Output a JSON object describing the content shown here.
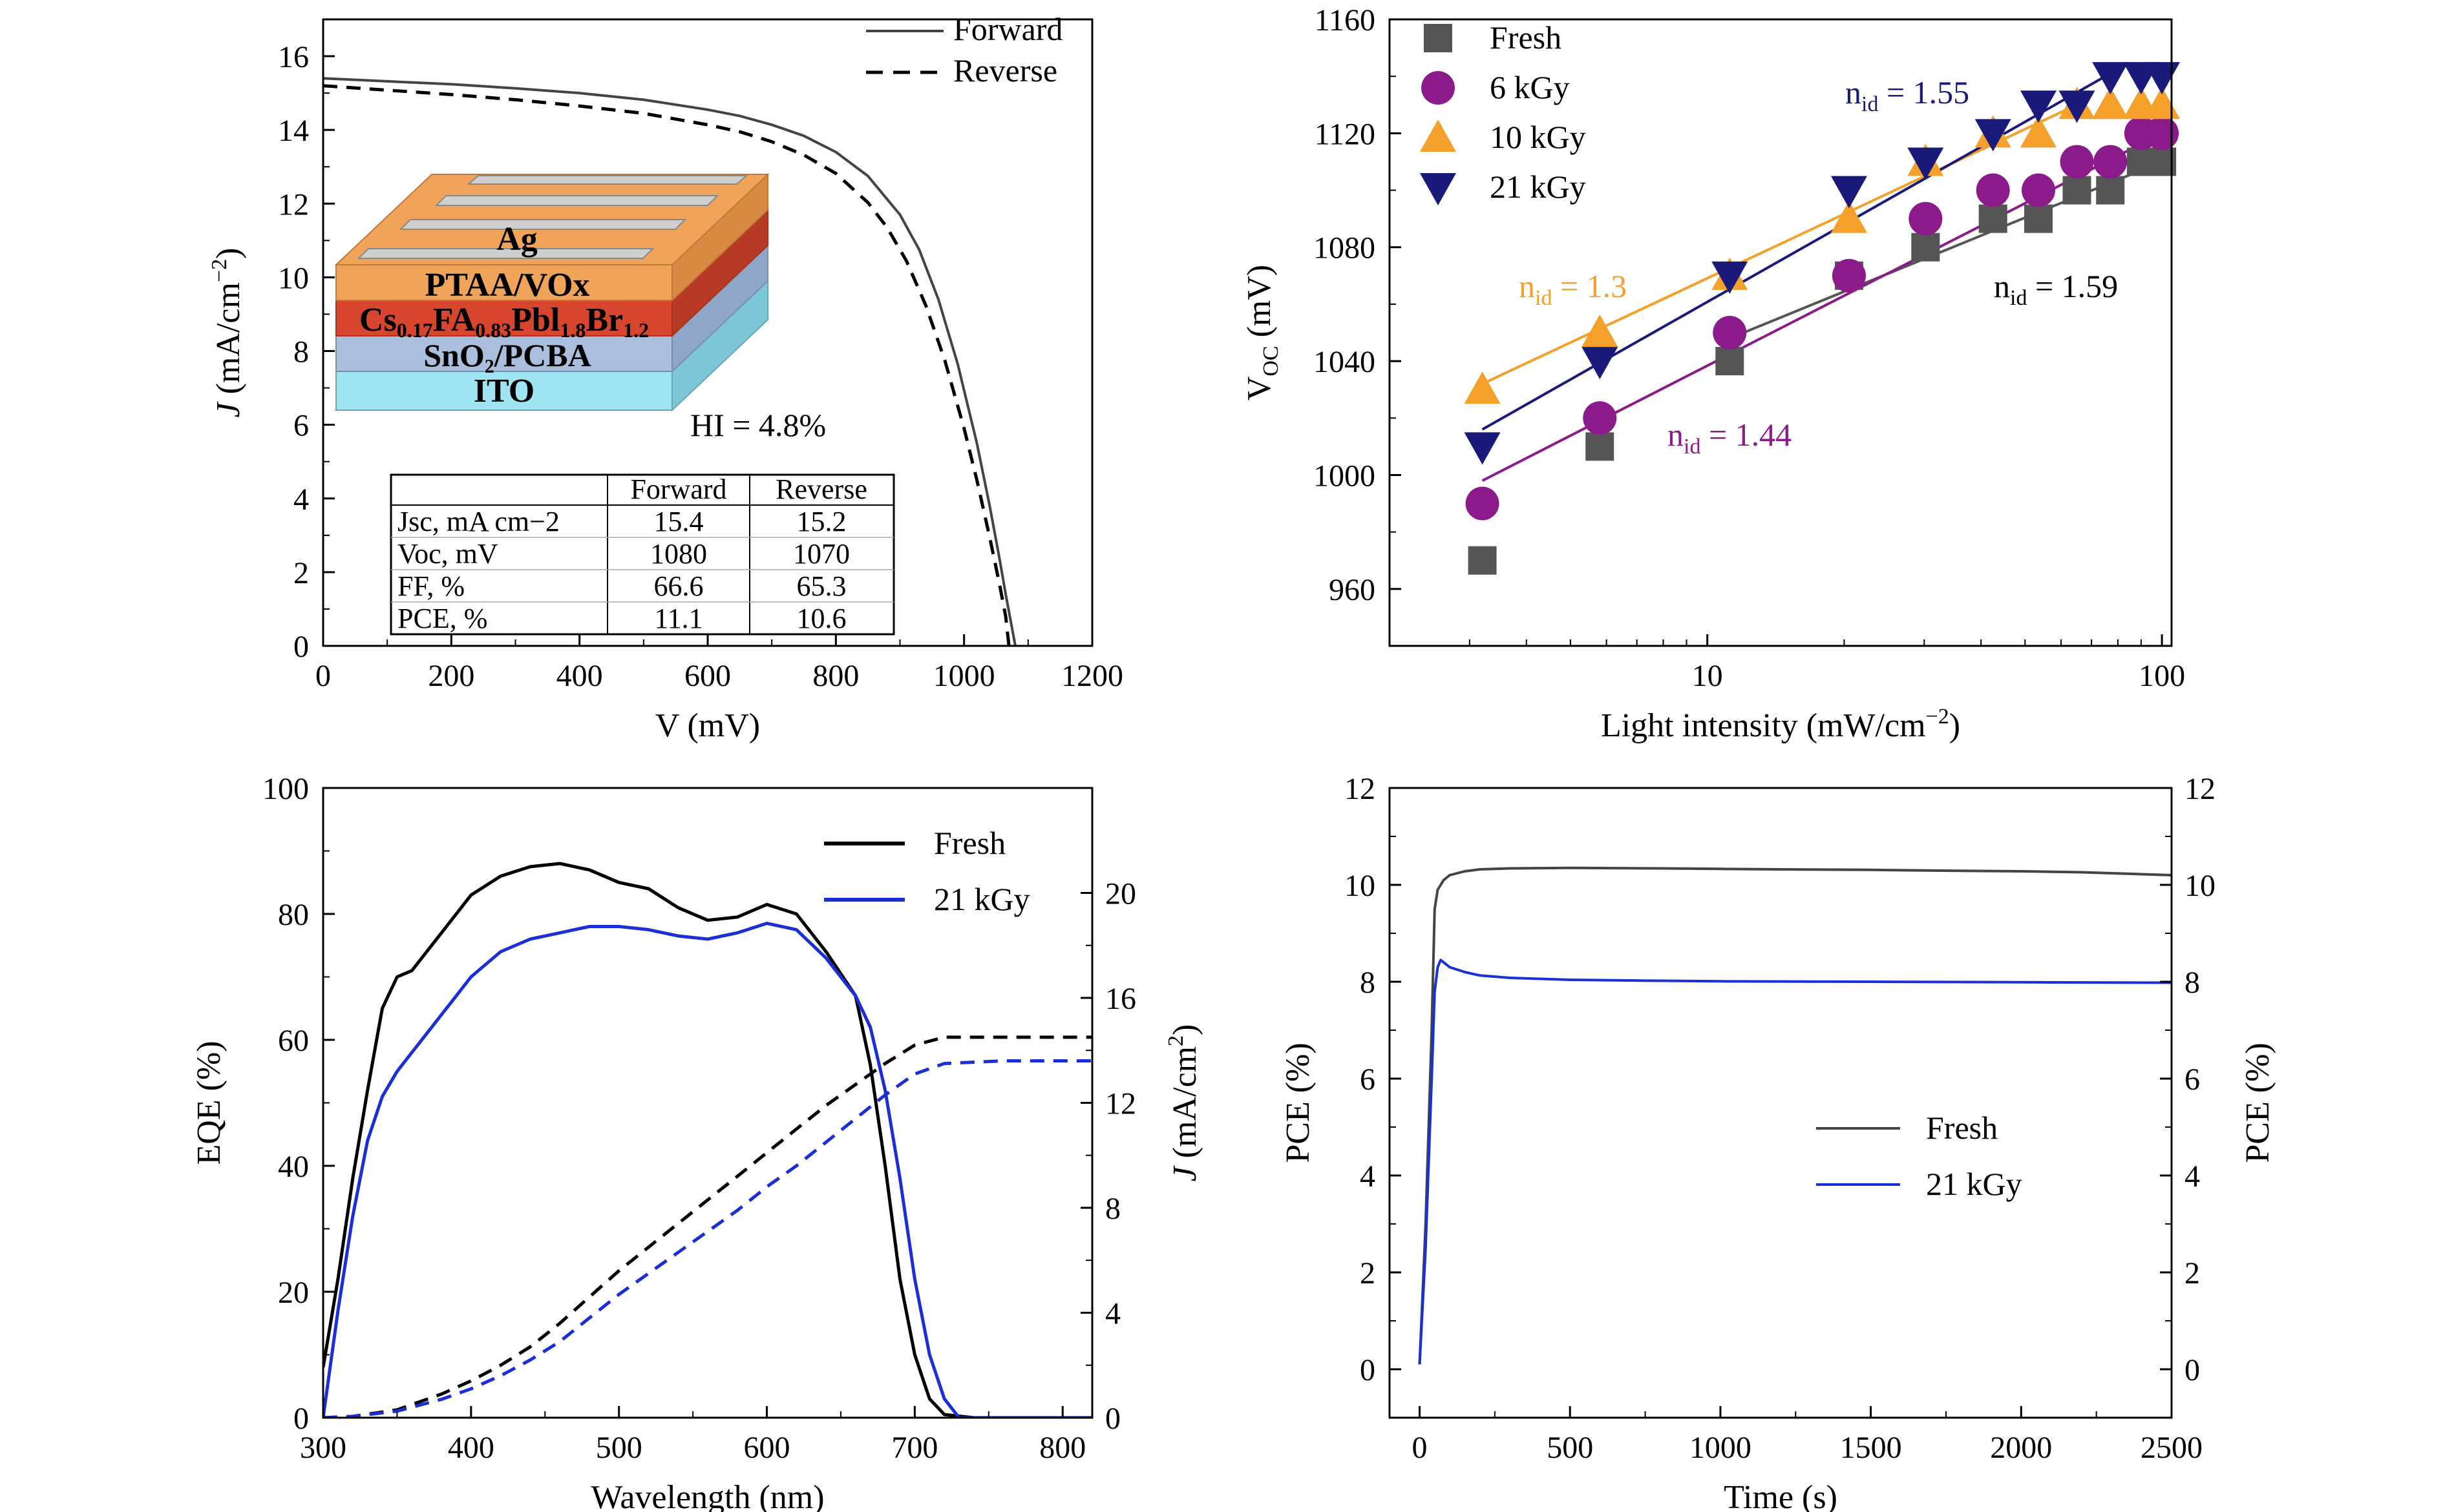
{
  "chart_data": [
    {
      "id": "jv",
      "type": "line",
      "xlabel": "V (mV)",
      "ylabel": {
        "main": "J",
        "rest": " (mA/cm",
        "sup": "−2",
        "close": ")"
      },
      "xlim": [
        0,
        1200
      ],
      "ylim": [
        0,
        17
      ],
      "xticks": [
        0,
        200,
        400,
        600,
        800,
        1000,
        1200
      ],
      "yticks": [
        0,
        2,
        4,
        6,
        8,
        10,
        12,
        14,
        16
      ],
      "legend": "top-right",
      "series": [
        {
          "name": "Forward",
          "color": "#444444",
          "dash": "solid",
          "x": [
            0,
            100,
            200,
            300,
            400,
            500,
            600,
            650,
            700,
            750,
            800,
            850,
            900,
            930,
            960,
            990,
            1020,
            1040,
            1055,
            1065,
            1073,
            1080
          ],
          "y": [
            15.4,
            15.32,
            15.24,
            15.13,
            15.0,
            14.82,
            14.55,
            14.38,
            14.14,
            13.84,
            13.4,
            12.75,
            11.7,
            10.75,
            9.4,
            7.65,
            5.5,
            3.8,
            2.4,
            1.4,
            0.65,
            0
          ]
        },
        {
          "name": "Reverse",
          "color": "#000000",
          "dash": "dashed",
          "x": [
            0,
            100,
            200,
            300,
            400,
            500,
            600,
            650,
            700,
            750,
            800,
            850,
            880,
            910,
            940,
            970,
            1000,
            1020,
            1040,
            1055,
            1065,
            1070
          ],
          "y": [
            15.2,
            15.08,
            14.96,
            14.82,
            14.65,
            14.45,
            14.14,
            13.95,
            13.68,
            13.32,
            12.82,
            12.03,
            11.35,
            10.45,
            9.25,
            7.75,
            5.9,
            4.5,
            2.95,
            1.7,
            0.8,
            0
          ]
        }
      ],
      "annotation": "HI = 4.8%",
      "annotation_color": "#cc2222",
      "inset_layers": [
        {
          "label": "Ag",
          "color": "#f0a45a"
        },
        {
          "label": "PTAA/VOx",
          "color": "#f0a45a"
        },
        {
          "label_html": [
            "Cs",
            "0.17",
            "FA",
            "0.83",
            "Pbl",
            "1.8",
            "Br",
            "1.2"
          ],
          "color": "#d8452e"
        },
        {
          "label": "SnO₂/PCBA",
          "color": "#9ab2d4"
        },
        {
          "label": "ITO",
          "color": "#7fd4e6"
        }
      ],
      "table": {
        "headers": [
          "",
          "Forward",
          "Reverse"
        ],
        "rows": [
          [
            "Jsc, mA cm−2",
            "15.4",
            "15.2"
          ],
          [
            "Voc, mV",
            "1080",
            "1070"
          ],
          [
            "FF, %",
            "66.6",
            "65.3"
          ],
          [
            "PCE, %",
            "11.1",
            "10.6"
          ]
        ]
      }
    },
    {
      "id": "voc",
      "type": "scatter",
      "xscale": "log",
      "xlabel": {
        "main": "Light intensity (mW/cm",
        "sup": "−2",
        "close": ")"
      },
      "ylabel": {
        "main": "V",
        "sub": "OC",
        "rest": " (mV)"
      },
      "xlim": [
        2,
        105
      ],
      "ylim": [
        940,
        1160
      ],
      "xticks": [
        10,
        100
      ],
      "yticks": [
        960,
        1000,
        1040,
        1080,
        1120,
        1160
      ],
      "legend": "top-left",
      "series": [
        {
          "name": "Fresh",
          "color": "#555555",
          "marker": "square",
          "x": [
            3.2,
            5.8,
            11.2,
            20.5,
            30.2,
            42.5,
            53.5,
            65,
            77,
            90,
            100
          ],
          "y": [
            970,
            1010,
            1040,
            1070,
            1080,
            1090,
            1090,
            1100,
            1100,
            1110,
            1110
          ],
          "fit": {
            "x": [
              11.2,
              100
            ],
            "y": [
              1048,
              1110
            ],
            "label_main": "n",
            "label_sub": "id",
            "label_val": " = 1.59",
            "label_color": "#000000"
          }
        },
        {
          "name": "6 kGy",
          "color": "#8b1a8b",
          "marker": "circle",
          "x": [
            3.2,
            5.8,
            11.2,
            20.5,
            30.2,
            42.5,
            53.5,
            65,
            77,
            90,
            100
          ],
          "y": [
            990,
            1020,
            1050,
            1070,
            1090,
            1100,
            1100,
            1110,
            1110,
            1120,
            1120
          ],
          "fit": {
            "x": [
              3.2,
              100
            ],
            "y": [
              998,
              1120
            ],
            "label_main": "n",
            "label_sub": "id",
            "label_val": " = 1.44",
            "label_color": "#8b1a8b"
          }
        },
        {
          "name": "10 kGy",
          "color": "#f5a02a",
          "marker": "triangle-up",
          "x": [
            3.2,
            5.8,
            11.2,
            20.5,
            30.2,
            42.5,
            53.5,
            65,
            77,
            90,
            100
          ],
          "y": [
            1030,
            1050,
            1070,
            1090,
            1110,
            1120,
            1120,
            1130,
            1130,
            1130,
            1130
          ],
          "fit": {
            "x": [
              3.2,
              65
            ],
            "y": [
              1032,
              1130
            ],
            "label_main": "n",
            "label_sub": "id",
            "label_val": " = 1.3",
            "label_color": "#f5a02a"
          }
        },
        {
          "name": "21 kGy",
          "color": "#1a1a7a",
          "marker": "triangle-down",
          "x": [
            3.2,
            5.8,
            11.2,
            20.5,
            30.2,
            42.5,
            53.5,
            65,
            77,
            90,
            100
          ],
          "y": [
            1010,
            1040,
            1070,
            1100,
            1110,
            1120,
            1130,
            1130,
            1140,
            1140,
            1140
          ],
          "fit": {
            "x": [
              3.2,
              77
            ],
            "y": [
              1016,
              1141
            ],
            "label_main": "n",
            "label_sub": "id",
            "label_val": " = 1.55",
            "label_color": "#1a1a7a"
          }
        }
      ]
    },
    {
      "id": "eqe",
      "type": "line",
      "xlabel": "Wavelength (nm)",
      "ylabel": "EQE (%)",
      "ylabel_right": {
        "main": "J",
        "rest": " (mA/cm",
        "sup": "2",
        "close": ")"
      },
      "xlim": [
        300,
        820
      ],
      "ylim": [
        0,
        100
      ],
      "ylim_right": [
        0,
        24
      ],
      "xticks": [
        300,
        400,
        500,
        600,
        700,
        800
      ],
      "yticks": [
        0,
        20,
        40,
        60,
        80,
        100
      ],
      "yticks_right": [
        0,
        4,
        8,
        12,
        16,
        20
      ],
      "legend": "top-right",
      "series": [
        {
          "name": "Fresh",
          "color": "#000000",
          "dash": "solid",
          "axis": "left",
          "x": [
            300,
            310,
            320,
            330,
            340,
            350,
            360,
            370,
            380,
            390,
            400,
            420,
            440,
            460,
            480,
            500,
            520,
            540,
            560,
            580,
            600,
            620,
            640,
            660,
            670,
            680,
            690,
            700,
            710,
            720,
            740,
            820
          ],
          "y": [
            8,
            22,
            38,
            52,
            65,
            70,
            71,
            74,
            77,
            80,
            83,
            86,
            87.5,
            88,
            87,
            85,
            84,
            81,
            79,
            79.5,
            81.5,
            80,
            74,
            67,
            56,
            40,
            22,
            10,
            3,
            0.5,
            0,
            0
          ]
        },
        {
          "name": "21 kGy",
          "color": "#1a2fd6",
          "dash": "solid",
          "axis": "left",
          "x": [
            300,
            310,
            320,
            330,
            340,
            350,
            360,
            370,
            380,
            390,
            400,
            420,
            440,
            460,
            480,
            500,
            520,
            540,
            560,
            580,
            600,
            620,
            640,
            660,
            670,
            680,
            690,
            700,
            710,
            720,
            730,
            820
          ],
          "y": [
            0,
            17,
            32,
            44,
            51,
            55,
            58,
            61,
            64,
            67,
            70,
            74,
            76,
            77,
            78,
            78,
            77.5,
            76.5,
            76,
            77,
            78.5,
            77.5,
            73,
            67,
            62,
            52,
            38,
            22,
            10,
            3,
            0,
            0
          ]
        },
        {
          "name": "Fresh J",
          "color": "#000000",
          "dash": "dashed",
          "axis": "right",
          "x": [
            300,
            320,
            350,
            380,
            400,
            420,
            440,
            460,
            480,
            500,
            520,
            540,
            560,
            580,
            600,
            620,
            640,
            660,
            680,
            700,
            720,
            760,
            820
          ],
          "y": [
            0,
            0.05,
            0.3,
            0.9,
            1.4,
            2.0,
            2.7,
            3.6,
            4.6,
            5.6,
            6.5,
            7.4,
            8.3,
            9.2,
            10.1,
            11.0,
            11.9,
            12.7,
            13.5,
            14.2,
            14.5,
            14.5,
            14.5
          ]
        },
        {
          "name": "21 kGy J",
          "color": "#1a2fd6",
          "dash": "dashed",
          "axis": "right",
          "x": [
            300,
            320,
            350,
            380,
            400,
            420,
            440,
            460,
            480,
            500,
            520,
            540,
            560,
            580,
            600,
            620,
            640,
            660,
            680,
            700,
            720,
            760,
            820
          ],
          "y": [
            0,
            0.05,
            0.25,
            0.7,
            1.1,
            1.6,
            2.2,
            2.9,
            3.8,
            4.7,
            5.5,
            6.3,
            7.1,
            7.9,
            8.8,
            9.6,
            10.5,
            11.4,
            12.3,
            13.1,
            13.5,
            13.6,
            13.6
          ]
        }
      ]
    },
    {
      "id": "pce",
      "type": "line",
      "xlabel": "Time (s)",
      "ylabel": "PCE (%)",
      "ylabel_right": "PCE (%)",
      "xlim": [
        -100,
        2500
      ],
      "ylim": [
        -1,
        12
      ],
      "xticks": [
        0,
        500,
        1000,
        1500,
        2000,
        2500
      ],
      "yticks": [
        0,
        2,
        4,
        6,
        8,
        10,
        12
      ],
      "legend": "center-right",
      "series": [
        {
          "name": "Fresh",
          "color": "#444444",
          "dash": "solid",
          "x": [
            0,
            20,
            40,
            50,
            60,
            80,
            100,
            150,
            200,
            300,
            500,
            800,
            1000,
            1200,
            1500,
            1800,
            2000,
            2200,
            2400,
            2500
          ],
          "y": [
            0.1,
            3,
            7,
            9.5,
            9.9,
            10.1,
            10.2,
            10.28,
            10.32,
            10.34,
            10.35,
            10.34,
            10.33,
            10.32,
            10.31,
            10.29,
            10.28,
            10.26,
            10.22,
            10.2
          ]
        },
        {
          "name": "21 kGy",
          "color": "#1a2fd6",
          "dash": "solid",
          "x": [
            0,
            20,
            40,
            50,
            60,
            70,
            80,
            100,
            150,
            200,
            300,
            500,
            800,
            1000,
            1500,
            2000,
            2500
          ],
          "y": [
            0.1,
            2.5,
            6,
            7.8,
            8.3,
            8.45,
            8.4,
            8.3,
            8.2,
            8.13,
            8.08,
            8.04,
            8.02,
            8.01,
            8.0,
            7.99,
            7.98
          ]
        }
      ]
    }
  ]
}
